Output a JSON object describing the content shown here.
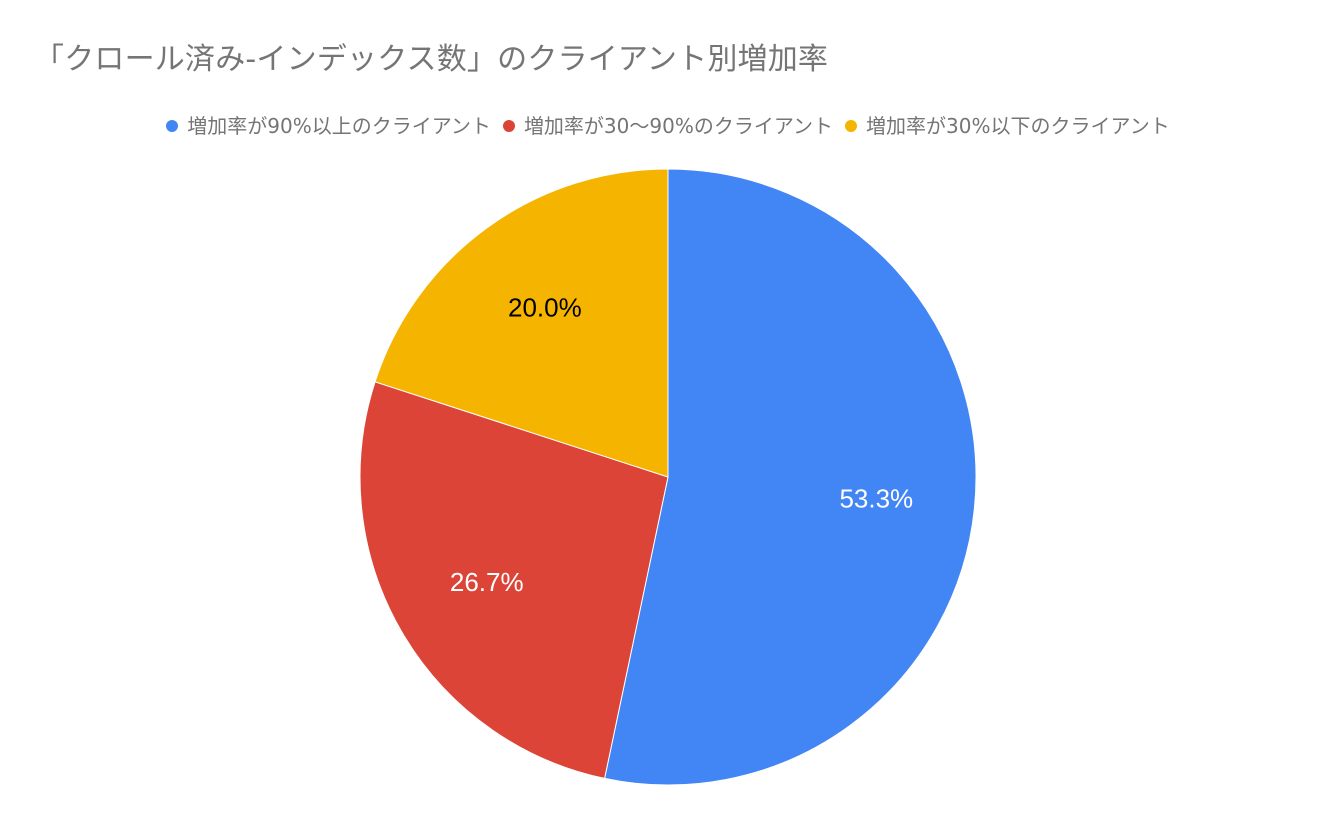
{
  "chart_data": {
    "type": "pie",
    "title": "「クロール済み-インデックス数」のクライアント別増加率",
    "legend_position": "top",
    "categories": [
      "増加率が90%以上のクライアント",
      "増加率が30〜90%のクライアント",
      "増加率が30%以下のクライアント"
    ],
    "values": [
      53.3,
      26.7,
      20.0
    ],
    "data_labels": [
      "53.3%",
      "26.7%",
      "20.0%"
    ],
    "colors": [
      "#4285F4",
      "#DB4437",
      "#F4B400"
    ],
    "label_colors": [
      "#ffffff",
      "#ffffff",
      "#000000"
    ]
  }
}
